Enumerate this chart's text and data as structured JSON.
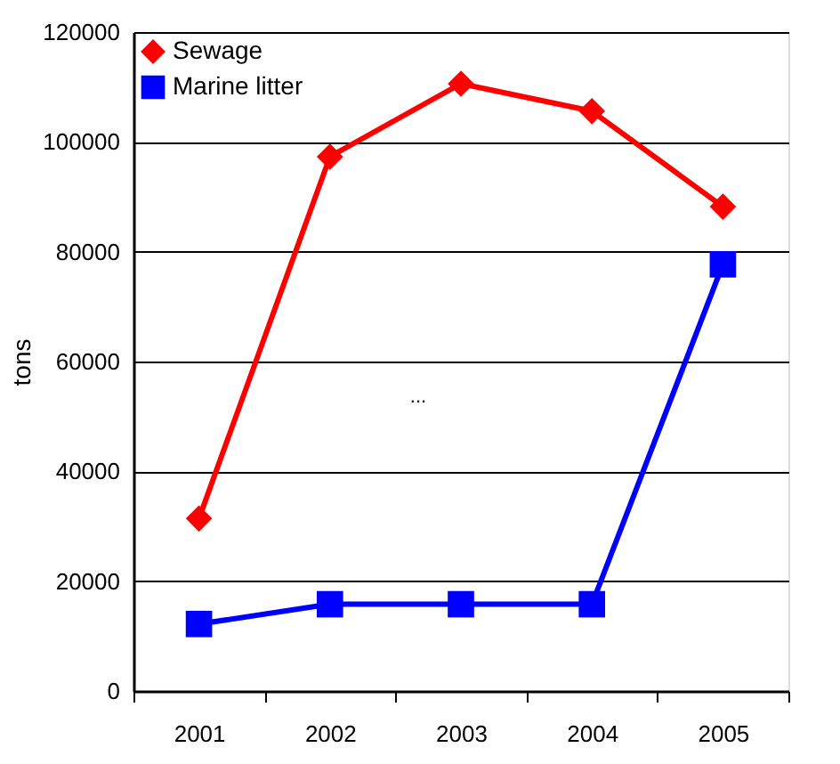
{
  "chart_data": {
    "type": "line",
    "ylabel": "tons",
    "categories": [
      "2001",
      "2002",
      "2003",
      "2004",
      "2005"
    ],
    "series": [
      {
        "name": "Sewage",
        "color": "#ff0000",
        "marker": "diamond",
        "values": [
          31400,
          97300,
          110600,
          105600,
          88200
        ]
      },
      {
        "name": "Marine litter",
        "color": "#0000ff",
        "marker": "square",
        "values": [
          12200,
          15800,
          15800,
          15800,
          77700
        ]
      }
    ],
    "ylim": [
      0,
      120000
    ],
    "yticks": [
      0,
      20000,
      40000,
      60000,
      80000,
      100000,
      120000
    ],
    "grid": "y",
    "legend": "top left",
    "line_style": "solid",
    "annotations": [
      "..."
    ]
  }
}
